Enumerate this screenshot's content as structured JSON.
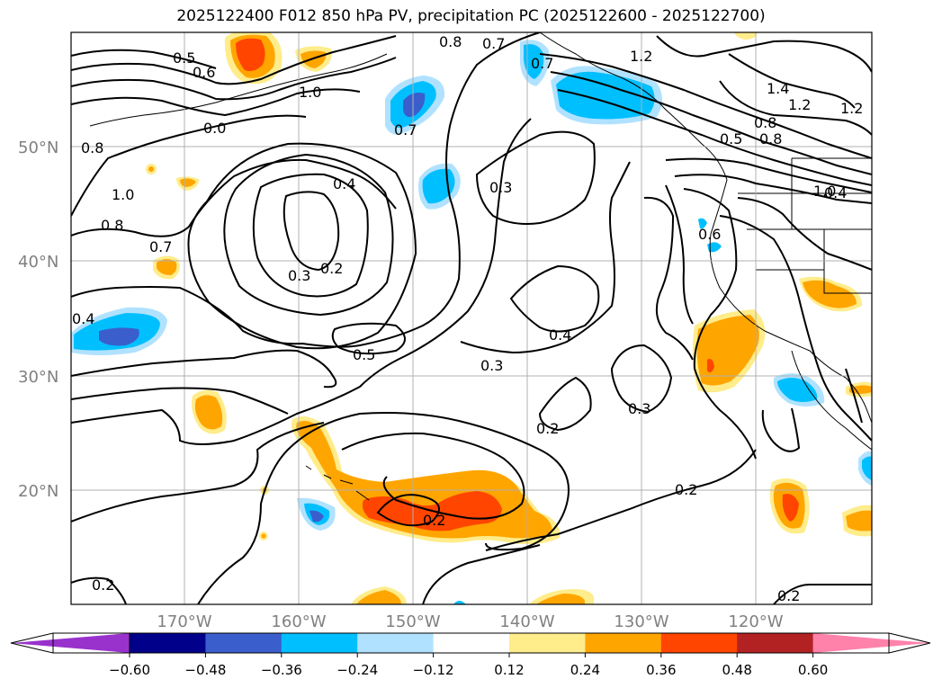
{
  "title": "2025122400 F012 850 hPa PV, precipitation PC (2025122600 - 2025122700)",
  "axes": {
    "lat_labels": [
      "50°N",
      "40°N",
      "30°N",
      "20°N"
    ],
    "lon_labels": [
      "170°W",
      "160°W",
      "150°W",
      "140°W",
      "130°W",
      "120°W"
    ]
  },
  "contour_labels": [
    "0.5",
    "0.6",
    "0.8",
    "0.7",
    "1.2",
    "1.0",
    "0.8",
    "1.4",
    "1.2",
    "1.2",
    "0.7",
    "0.8",
    "0.8",
    "0.5",
    "1.0",
    "0.8",
    "1.0",
    "0.4",
    "0.3",
    "0.4",
    "0.7",
    "0.3",
    "0.2",
    "0.6",
    "0.4",
    "0.4",
    "0.5",
    "0.3",
    "0.3",
    "0.2",
    "0.2",
    "0.2",
    "0.2",
    "0.2",
    "0.7",
    "0.0"
  ],
  "colorbar": {
    "ticks": [
      "−0.60",
      "−0.48",
      "−0.36",
      "−0.24",
      "−0.12",
      "0.12",
      "0.24",
      "0.36",
      "0.48",
      "0.60"
    ],
    "colors": [
      "#9932cc",
      "#00008b",
      "#3a5fcd",
      "#00bfff",
      "#b0e2ff",
      "#ffffff",
      "#ffec8b",
      "#ffa500",
      "#ff4500",
      "#b22222",
      "#ff82ab"
    ]
  },
  "legend_colors": {
    "neg_strong": "#3a5fcd",
    "neg_mid": "#00bfff",
    "neg_weak": "#b0e2ff",
    "pos_weak": "#ffec8b",
    "pos_mid": "#ffa500",
    "pos_strong": "#ff4500"
  }
}
